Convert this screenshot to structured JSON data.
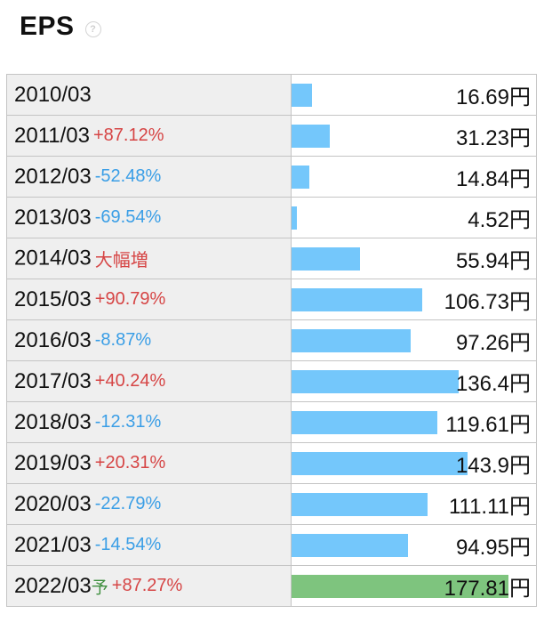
{
  "header": {
    "title": "EPS",
    "help_icon": "question-circle-icon"
  },
  "colors": {
    "bar": "#74c7fb",
    "forecast_bar": "#7ec47e",
    "increase": "#d64545",
    "decrease": "#3a9ee6",
    "forecast_mark": "#3f8f3f"
  },
  "chart_data": {
    "type": "bar",
    "orientation": "horizontal",
    "title": "EPS",
    "unit": "円",
    "xlim": [
      0,
      200
    ],
    "categories": [
      "2010/03",
      "2011/03",
      "2012/03",
      "2013/03",
      "2014/03",
      "2015/03",
      "2016/03",
      "2017/03",
      "2018/03",
      "2019/03",
      "2020/03",
      "2021/03",
      "2022/03"
    ],
    "values": [
      16.69,
      31.23,
      14.84,
      4.52,
      55.94,
      106.73,
      97.26,
      136.4,
      119.61,
      143.9,
      111.11,
      94.95,
      177.81
    ],
    "rows": [
      {
        "period": "2010/03",
        "forecast": "",
        "change": "",
        "direction": "",
        "value": 16.69,
        "value_label": "16.69円"
      },
      {
        "period": "2011/03",
        "forecast": "",
        "change": "+87.12%",
        "direction": "up",
        "value": 31.23,
        "value_label": "31.23円"
      },
      {
        "period": "2012/03",
        "forecast": "",
        "change": "-52.48%",
        "direction": "down",
        "value": 14.84,
        "value_label": "14.84円"
      },
      {
        "period": "2013/03",
        "forecast": "",
        "change": "-69.54%",
        "direction": "down",
        "value": 4.52,
        "value_label": "4.52円"
      },
      {
        "period": "2014/03",
        "forecast": "",
        "change": "大幅増",
        "direction": "up",
        "value": 55.94,
        "value_label": "55.94円"
      },
      {
        "period": "2015/03",
        "forecast": "",
        "change": "+90.79%",
        "direction": "up",
        "value": 106.73,
        "value_label": "106.73円"
      },
      {
        "period": "2016/03",
        "forecast": "",
        "change": "-8.87%",
        "direction": "down",
        "value": 97.26,
        "value_label": "97.26円"
      },
      {
        "period": "2017/03",
        "forecast": "",
        "change": "+40.24%",
        "direction": "up",
        "value": 136.4,
        "value_label": "136.4円"
      },
      {
        "period": "2018/03",
        "forecast": "",
        "change": "-12.31%",
        "direction": "down",
        "value": 119.61,
        "value_label": "119.61円"
      },
      {
        "period": "2019/03",
        "forecast": "",
        "change": "+20.31%",
        "direction": "up",
        "value": 143.9,
        "value_label": "143.9円"
      },
      {
        "period": "2020/03",
        "forecast": "",
        "change": "-22.79%",
        "direction": "down",
        "value": 111.11,
        "value_label": "111.11円"
      },
      {
        "period": "2021/03",
        "forecast": "",
        "change": "-14.54%",
        "direction": "down",
        "value": 94.95,
        "value_label": "94.95円"
      },
      {
        "period": "2022/03",
        "forecast": "予",
        "change": "+87.27%",
        "direction": "up",
        "value": 177.81,
        "value_label": "177.81円"
      }
    ]
  }
}
